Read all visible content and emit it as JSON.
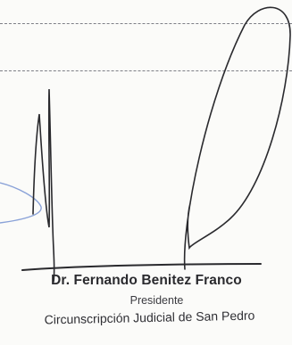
{
  "signature_block": {
    "name": "Dr. Fernando Benitez Franco",
    "title": "Presidente",
    "jurisdiction": "Circunscripción Judicial de San Pedro"
  },
  "colors": {
    "ink": "#2a2a2e",
    "dashed_line": "#7d7f86",
    "stamp_blue": "#8aa2d8",
    "paper": "#fbfbf9"
  }
}
